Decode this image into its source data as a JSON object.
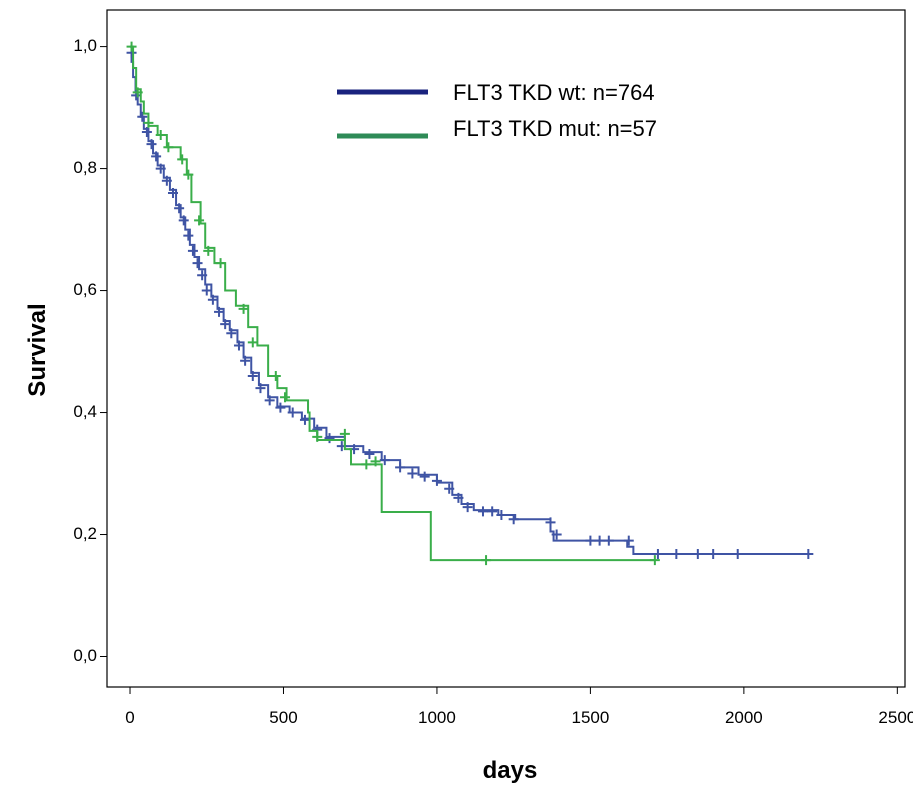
{
  "chart_data": {
    "type": "line",
    "subtype": "kaplan-meier",
    "xlabel": "days",
    "ylabel": "Survival",
    "xlim": [
      -75,
      2525
    ],
    "ylim": [
      -0.05,
      1.06
    ],
    "xticks": [
      0,
      500,
      1000,
      1500,
      2000,
      2500
    ],
    "xtick_labels": [
      "0",
      "500",
      "1000",
      "1500",
      "2000",
      "2500"
    ],
    "yticks": [
      0.0,
      0.2,
      0.4,
      0.6,
      0.8,
      1.0
    ],
    "ytick_labels": [
      "0,0",
      "0,2",
      "0,4",
      "0,6",
      "0,8",
      "1,0"
    ],
    "grid": false,
    "legend_position": "top-center",
    "series": [
      {
        "name": "FLT3 TKD wt: n=764",
        "color": "#3f54a4",
        "legend_color": "#1a237e",
        "steps": [
          [
            0,
            1.0
          ],
          [
            5,
            0.975
          ],
          [
            10,
            0.95
          ],
          [
            18,
            0.925
          ],
          [
            25,
            0.905
          ],
          [
            35,
            0.885
          ],
          [
            45,
            0.865
          ],
          [
            60,
            0.845
          ],
          [
            75,
            0.825
          ],
          [
            90,
            0.805
          ],
          [
            110,
            0.785
          ],
          [
            130,
            0.765
          ],
          [
            150,
            0.74
          ],
          [
            165,
            0.72
          ],
          [
            180,
            0.7
          ],
          [
            195,
            0.675
          ],
          [
            210,
            0.655
          ],
          [
            225,
            0.635
          ],
          [
            245,
            0.61
          ],
          [
            265,
            0.59
          ],
          [
            285,
            0.57
          ],
          [
            305,
            0.55
          ],
          [
            325,
            0.535
          ],
          [
            350,
            0.515
          ],
          [
            370,
            0.49
          ],
          [
            395,
            0.465
          ],
          [
            420,
            0.445
          ],
          [
            450,
            0.425
          ],
          [
            480,
            0.41
          ],
          [
            520,
            0.4
          ],
          [
            560,
            0.39
          ],
          [
            600,
            0.375
          ],
          [
            640,
            0.36
          ],
          [
            700,
            0.345
          ],
          [
            760,
            0.335
          ],
          [
            820,
            0.322
          ],
          [
            880,
            0.31
          ],
          [
            940,
            0.298
          ],
          [
            1000,
            0.285
          ],
          [
            1050,
            0.265
          ],
          [
            1080,
            0.25
          ],
          [
            1120,
            0.24
          ],
          [
            1200,
            0.232
          ],
          [
            1255,
            0.225
          ],
          [
            1370,
            0.205
          ],
          [
            1380,
            0.19
          ],
          [
            1620,
            0.18
          ],
          [
            1640,
            0.168
          ],
          [
            2210,
            0.168
          ]
        ],
        "censor": [
          [
            5,
            0.99
          ],
          [
            20,
            0.92
          ],
          [
            40,
            0.885
          ],
          [
            55,
            0.86
          ],
          [
            70,
            0.84
          ],
          [
            85,
            0.82
          ],
          [
            100,
            0.8
          ],
          [
            120,
            0.78
          ],
          [
            140,
            0.76
          ],
          [
            160,
            0.735
          ],
          [
            175,
            0.715
          ],
          [
            190,
            0.69
          ],
          [
            205,
            0.665
          ],
          [
            220,
            0.645
          ],
          [
            235,
            0.625
          ],
          [
            250,
            0.6
          ],
          [
            270,
            0.585
          ],
          [
            290,
            0.565
          ],
          [
            310,
            0.545
          ],
          [
            330,
            0.53
          ],
          [
            355,
            0.51
          ],
          [
            375,
            0.485
          ],
          [
            400,
            0.46
          ],
          [
            425,
            0.44
          ],
          [
            455,
            0.42
          ],
          [
            490,
            0.408
          ],
          [
            530,
            0.4
          ],
          [
            570,
            0.388
          ],
          [
            610,
            0.372
          ],
          [
            650,
            0.358
          ],
          [
            690,
            0.345
          ],
          [
            730,
            0.34
          ],
          [
            780,
            0.332
          ],
          [
            830,
            0.322
          ],
          [
            880,
            0.31
          ],
          [
            920,
            0.3
          ],
          [
            960,
            0.295
          ],
          [
            1000,
            0.288
          ],
          [
            1040,
            0.275
          ],
          [
            1070,
            0.26
          ],
          [
            1100,
            0.245
          ],
          [
            1150,
            0.238
          ],
          [
            1180,
            0.238
          ],
          [
            1210,
            0.232
          ],
          [
            1250,
            0.225
          ],
          [
            1370,
            0.22
          ],
          [
            1390,
            0.2
          ],
          [
            1500,
            0.19
          ],
          [
            1530,
            0.19
          ],
          [
            1560,
            0.19
          ],
          [
            1625,
            0.19
          ],
          [
            1720,
            0.168
          ],
          [
            1780,
            0.168
          ],
          [
            1850,
            0.168
          ],
          [
            1900,
            0.168
          ],
          [
            1980,
            0.168
          ],
          [
            2210,
            0.168
          ]
        ]
      },
      {
        "name": "FLT3 TKD mut: n=57",
        "color": "#3aae4a",
        "legend_color": "#2e8b57",
        "steps": [
          [
            0,
            1.0
          ],
          [
            10,
            0.965
          ],
          [
            20,
            0.93
          ],
          [
            35,
            0.91
          ],
          [
            45,
            0.89
          ],
          [
            60,
            0.87
          ],
          [
            90,
            0.855
          ],
          [
            120,
            0.835
          ],
          [
            165,
            0.815
          ],
          [
            185,
            0.79
          ],
          [
            200,
            0.745
          ],
          [
            230,
            0.71
          ],
          [
            245,
            0.67
          ],
          [
            275,
            0.645
          ],
          [
            310,
            0.6
          ],
          [
            345,
            0.575
          ],
          [
            385,
            0.54
          ],
          [
            415,
            0.51
          ],
          [
            450,
            0.46
          ],
          [
            480,
            0.44
          ],
          [
            510,
            0.42
          ],
          [
            580,
            0.4
          ],
          [
            585,
            0.37
          ],
          [
            610,
            0.355
          ],
          [
            700,
            0.34
          ],
          [
            720,
            0.315
          ],
          [
            760,
            0.315
          ],
          [
            820,
            0.237
          ],
          [
            980,
            0.158
          ],
          [
            1710,
            0.158
          ]
        ],
        "censor": [
          [
            5,
            1.0
          ],
          [
            25,
            0.925
          ],
          [
            60,
            0.875
          ],
          [
            100,
            0.855
          ],
          [
            125,
            0.835
          ],
          [
            170,
            0.815
          ],
          [
            190,
            0.79
          ],
          [
            225,
            0.715
          ],
          [
            255,
            0.665
          ],
          [
            295,
            0.645
          ],
          [
            370,
            0.57
          ],
          [
            400,
            0.515
          ],
          [
            475,
            0.46
          ],
          [
            505,
            0.425
          ],
          [
            610,
            0.36
          ],
          [
            700,
            0.365
          ],
          [
            770,
            0.315
          ],
          [
            800,
            0.32
          ],
          [
            1160,
            0.158
          ],
          [
            1710,
            0.158
          ]
        ]
      }
    ]
  }
}
